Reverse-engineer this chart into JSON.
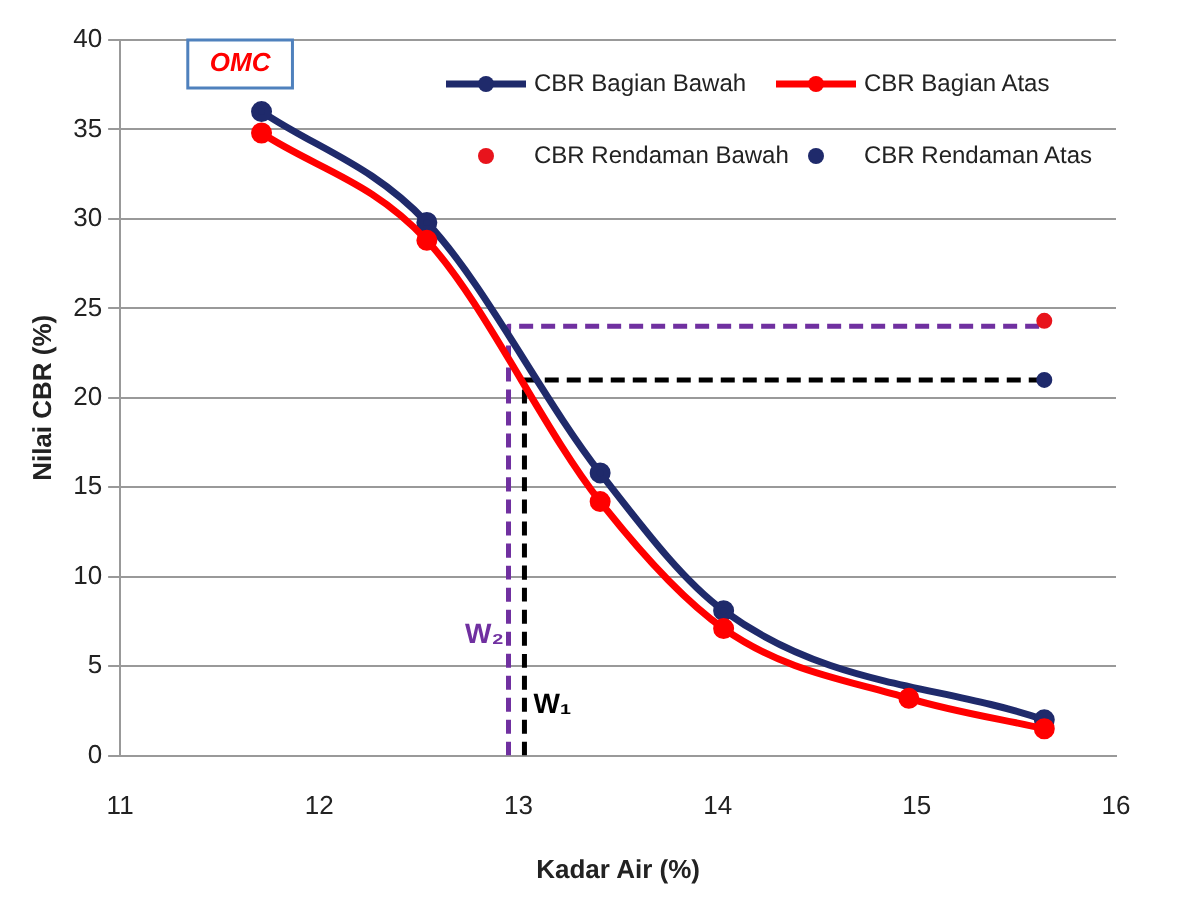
{
  "chart_data": {
    "type": "line",
    "xlabel": "Kadar Air (%)",
    "ylabel": "Nilai CBR (%)",
    "xlim": [
      11,
      16
    ],
    "xticks": [
      11,
      12,
      13,
      14,
      15,
      16
    ],
    "ylim": [
      0,
      40
    ],
    "yticks": [
      0,
      5,
      10,
      15,
      20,
      25,
      30,
      35,
      40
    ],
    "grid": "y",
    "legend": "top right",
    "marker": "circle",
    "series": [
      {
        "name": "CBR Bagian Bawah",
        "color": "#1f2a6b",
        "x": [
          11.71,
          12.54,
          13.41,
          14.03,
          15.64
        ],
        "values": [
          36,
          29.8,
          15.8,
          8.1,
          2.0
        ]
      },
      {
        "name": "CBR Bagian Atas",
        "color": "#ff0000",
        "x": [
          11.71,
          12.54,
          13.41,
          14.03,
          14.96,
          15.64
        ],
        "values": [
          34.8,
          28.8,
          14.2,
          7.1,
          3.2,
          1.5
        ]
      },
      {
        "name": "CBR Rendaman Bawah",
        "type": "scatter",
        "color": "#e8141c",
        "x": [
          15.64
        ],
        "values": [
          24.3
        ]
      },
      {
        "name": "CBR Rendaman Atas",
        "type": "scatter",
        "color": "#1f2a6b",
        "x": [
          15.64
        ],
        "values": [
          21
        ]
      },
      {
        "type": "line",
        "color": "#7030a0",
        "line_style": "dashed",
        "marker": "none",
        "x": [
          12.95,
          12.95,
          15.64
        ],
        "values": [
          0,
          24,
          24
        ]
      },
      {
        "type": "line",
        "color": "#000000",
        "line_style": "dashed",
        "marker": "none",
        "x": [
          13.03,
          13.03,
          15.64
        ],
        "values": [
          0,
          21,
          21
        ]
      }
    ],
    "annotations": [
      "OMC",
      "W₂",
      "W₁"
    ]
  }
}
